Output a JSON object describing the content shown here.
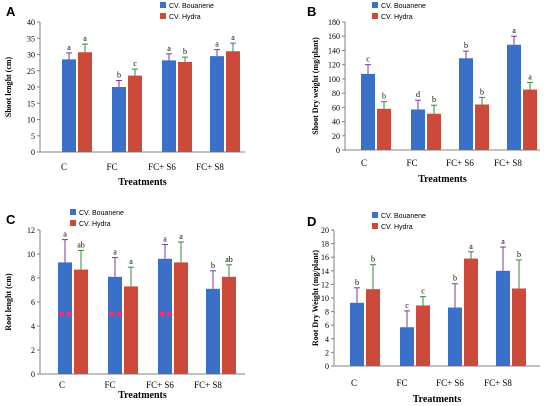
{
  "colors": {
    "series_1": "#3a70c8",
    "series_2": "#cc4a3c",
    "error_bar_a": "#7a3a9a",
    "error_bar_b": "#3a8a3a",
    "axis": "#808080",
    "panel_c_dot": "#ff2a6a"
  },
  "chart_data": [
    {
      "panel": "A",
      "type": "bar",
      "categories": [
        "C",
        "FC",
        "FC+ S6",
        "FC+ S8"
      ],
      "series": [
        {
          "name": "CV. Bouanene",
          "values": [
            28.5,
            20.0,
            28.2,
            29.5
          ],
          "errors": [
            2.0,
            2.0,
            2.0,
            2.0
          ],
          "labels": [
            "a",
            "b",
            "a",
            "a"
          ]
        },
        {
          "name": "CV. Hydra",
          "values": [
            30.7,
            23.5,
            27.7,
            31.0
          ],
          "errors": [
            2.5,
            2.0,
            1.5,
            2.5
          ],
          "labels": [
            "a",
            "c",
            "b",
            "a"
          ]
        }
      ],
      "xlabel": "Treatments",
      "ylabel": "Shoot lenght (cm)",
      "ylim": [
        0,
        40
      ],
      "yticks": [
        0,
        5,
        10,
        15,
        20,
        25,
        30,
        35,
        40
      ],
      "legend": "top-right"
    },
    {
      "panel": "B",
      "type": "bar",
      "categories": [
        "C",
        "FC",
        "FC+ S6",
        "FC+ S8"
      ],
      "series": [
        {
          "name": "CV. Bouanene",
          "values": [
            107,
            57,
            129,
            148
          ],
          "errors": [
            13,
            13,
            10,
            12
          ],
          "labels": [
            "c",
            "d",
            "b",
            "a"
          ]
        },
        {
          "name": "CV. Hydra",
          "values": [
            58,
            51,
            64,
            85
          ],
          "errors": [
            10,
            12,
            10,
            10
          ],
          "labels": [
            "b",
            "b",
            "b",
            "a"
          ]
        }
      ],
      "xlabel": "Treatments",
      "ylabel": "Shoot Dry weight (mg/plant)",
      "ylim": [
        0,
        180
      ],
      "yticks": [
        0,
        20,
        40,
        60,
        80,
        100,
        120,
        140,
        160,
        180
      ],
      "legend": "top-center"
    },
    {
      "panel": "C",
      "type": "bar",
      "categories": [
        "C",
        "FC",
        "FC+ S6",
        "FC+ S8"
      ],
      "series": [
        {
          "name": "CV. Bouanene",
          "values": [
            9.3,
            8.1,
            9.6,
            7.1
          ],
          "errors": [
            1.9,
            1.6,
            1.2,
            1.5
          ],
          "labels": [
            "a",
            "a",
            "a",
            "b"
          ]
        },
        {
          "name": "CV. Hydra",
          "values": [
            8.7,
            7.3,
            9.3,
            8.1
          ],
          "errors": [
            1.6,
            1.6,
            1.7,
            1.0
          ],
          "labels": [
            "ab",
            "a",
            "a",
            "ab"
          ]
        }
      ],
      "xlabel": "Treatments",
      "ylabel": "Root lenght (cm)",
      "ylim": [
        0,
        12
      ],
      "yticks": [
        0,
        2,
        4,
        6,
        8,
        10,
        12
      ],
      "legend": "top-center"
    },
    {
      "panel": "D",
      "type": "bar",
      "categories": [
        "C",
        "FC",
        "FC+ S6",
        "FC+ S8"
      ],
      "series": [
        {
          "name": "CV. Bouanene",
          "values": [
            9.3,
            5.7,
            8.6,
            14.0
          ],
          "errors": [
            2.2,
            2.4,
            3.5,
            3.5
          ],
          "labels": [
            "b",
            "c",
            "b",
            "a"
          ]
        },
        {
          "name": "CV. Hydra",
          "values": [
            11.3,
            8.9,
            15.8,
            11.4
          ],
          "errors": [
            3.6,
            1.3,
            1.0,
            4.2
          ],
          "labels": [
            "b",
            "c",
            "a",
            "b"
          ]
        }
      ],
      "xlabel": "Treatments",
      "ylabel": "Root Dry Weight (mg/plant)",
      "ylim": [
        0,
        20
      ],
      "yticks": [
        0,
        2,
        4,
        6,
        8,
        10,
        12,
        14,
        16,
        18,
        20
      ],
      "legend": "top-left"
    }
  ]
}
